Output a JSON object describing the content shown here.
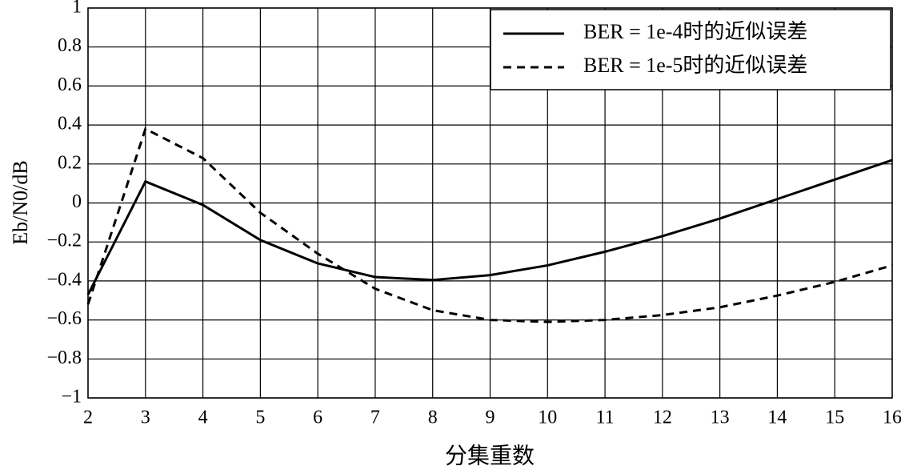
{
  "chart_data": {
    "type": "line",
    "x_label": "分集重数",
    "y_label": "Eb/N0/dB",
    "x": [
      2,
      3,
      4,
      5,
      6,
      7,
      8,
      9,
      10,
      11,
      12,
      13,
      14,
      15,
      16
    ],
    "series": [
      {
        "name": "BER = 1e-4时的近似误差",
        "color": "#000000",
        "dash": "solid",
        "values": [
          -0.47,
          0.11,
          -0.01,
          -0.19,
          -0.31,
          -0.38,
          -0.395,
          -0.37,
          -0.32,
          -0.25,
          -0.17,
          -0.08,
          0.02,
          0.12,
          0.22
        ]
      },
      {
        "name": "BER = 1e-5时的近似误差",
        "color": "#000000",
        "dash": "dashed",
        "values": [
          -0.52,
          0.38,
          0.23,
          -0.05,
          -0.26,
          -0.44,
          -0.55,
          -0.6,
          -0.61,
          -0.6,
          -0.575,
          -0.535,
          -0.475,
          -0.405,
          -0.32
        ]
      }
    ],
    "xlim": [
      2,
      16
    ],
    "xticks": [
      2,
      3,
      4,
      5,
      6,
      7,
      8,
      9,
      10,
      11,
      12,
      13,
      14,
      15,
      16
    ],
    "ylim": [
      -1,
      1
    ],
    "yticks": [
      {
        "value": -1,
        "label": "−1"
      },
      {
        "value": -0.8,
        "label": "−0.8"
      },
      {
        "value": -0.6,
        "label": "−0.6"
      },
      {
        "value": -0.4,
        "label": "−0.4"
      },
      {
        "value": -0.2,
        "label": "−0.2"
      },
      0,
      0.2,
      0.4,
      0.6,
      0.8,
      1
    ],
    "grid": true,
    "legend": "upper right"
  }
}
